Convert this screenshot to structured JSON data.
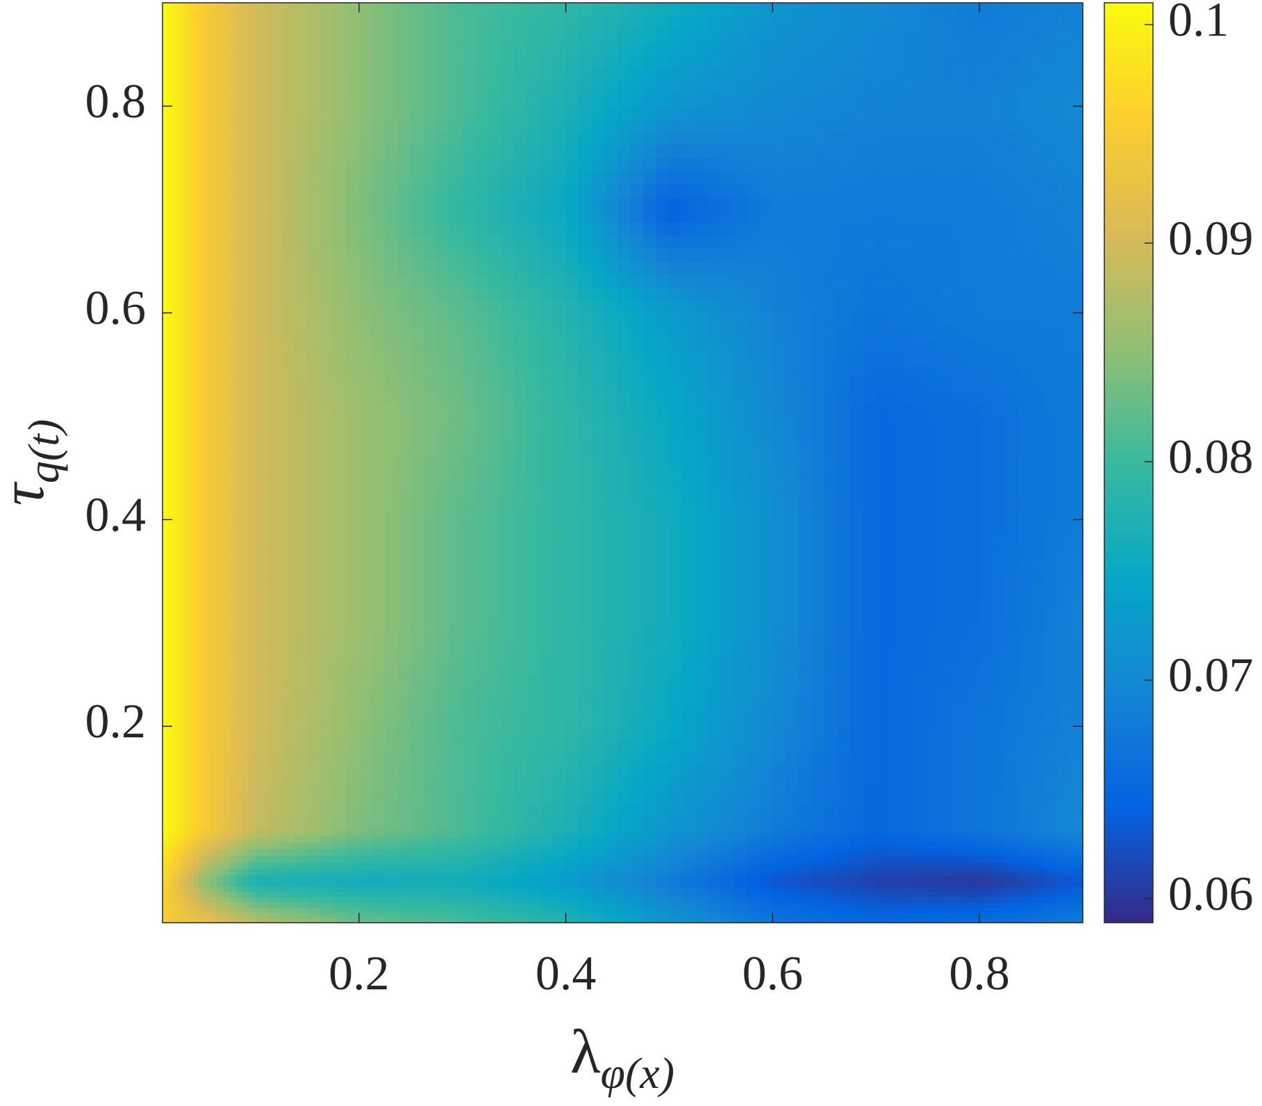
{
  "chart_data": {
    "type": "contourf",
    "xlabel": {
      "main": "λ",
      "sub": "φ(x)"
    },
    "ylabel": {
      "main": "τ",
      "sub": "q(t)"
    },
    "x": [
      0.01,
      0.05,
      0.1,
      0.2,
      0.3,
      0.4,
      0.5,
      0.6,
      0.7,
      0.8,
      0.9
    ],
    "y": [
      0.01,
      0.05,
      0.1,
      0.2,
      0.3,
      0.4,
      0.5,
      0.6,
      0.7,
      0.8,
      0.9
    ],
    "z": [
      [
        0.095,
        0.093,
        0.088,
        0.083,
        0.081,
        0.078,
        0.072,
        0.067,
        0.065,
        0.066,
        0.068
      ],
      [
        0.097,
        0.085,
        0.077,
        0.076,
        0.076,
        0.073,
        0.068,
        0.063,
        0.061,
        0.06,
        0.063
      ],
      [
        0.101,
        0.095,
        0.089,
        0.084,
        0.081,
        0.077,
        0.072,
        0.068,
        0.065,
        0.067,
        0.07
      ],
      [
        0.101,
        0.095,
        0.09,
        0.085,
        0.081,
        0.079,
        0.075,
        0.07,
        0.065,
        0.067,
        0.069
      ],
      [
        0.101,
        0.095,
        0.09,
        0.086,
        0.082,
        0.079,
        0.076,
        0.071,
        0.065,
        0.066,
        0.069
      ],
      [
        0.101,
        0.095,
        0.09,
        0.086,
        0.082,
        0.079,
        0.076,
        0.071,
        0.065,
        0.066,
        0.068
      ],
      [
        0.101,
        0.095,
        0.09,
        0.086,
        0.083,
        0.079,
        0.075,
        0.07,
        0.065,
        0.066,
        0.068
      ],
      [
        0.101,
        0.095,
        0.09,
        0.085,
        0.082,
        0.078,
        0.073,
        0.069,
        0.067,
        0.068,
        0.068
      ],
      [
        0.101,
        0.095,
        0.09,
        0.084,
        0.079,
        0.075,
        0.064,
        0.068,
        0.068,
        0.068,
        0.069
      ],
      [
        0.101,
        0.095,
        0.09,
        0.085,
        0.081,
        0.077,
        0.072,
        0.07,
        0.069,
        0.069,
        0.07
      ],
      [
        0.101,
        0.095,
        0.09,
        0.085,
        0.081,
        0.079,
        0.076,
        0.072,
        0.07,
        0.068,
        0.069
      ]
    ],
    "xlim": [
      0.01,
      0.9
    ],
    "ylim": [
      0.01,
      0.9
    ],
    "xticks": [
      0.2,
      0.4,
      0.6,
      0.8
    ],
    "yticks": [
      0.2,
      0.4,
      0.6,
      0.8
    ],
    "clim": [
      0.0589,
      0.101
    ],
    "cticks": [
      0.06,
      0.07,
      0.08,
      0.09,
      0.1
    ],
    "colormap": [
      "#352a87",
      "#0363e1",
      "#1485d4",
      "#06a7c6",
      "#38b99e",
      "#92bf73",
      "#d9ba56",
      "#fcce2e",
      "#f9fb0e"
    ]
  }
}
